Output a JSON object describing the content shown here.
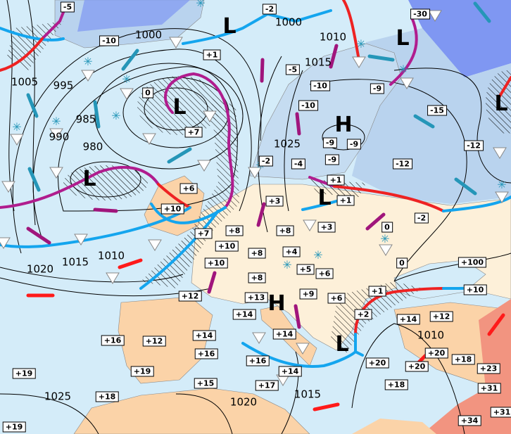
{
  "map": {
    "colors": {
      "sea": "#d4ecf9",
      "land": "#fdf0d9",
      "warm_land": "#fbd3a8",
      "hot_land": "#f29480",
      "cold_land": "#b9d3ee",
      "very_cold": "#7f97f2",
      "cold_front": "#14a5ee",
      "warm_front": "#ee2222",
      "occluded_front": "#b01c8e",
      "cold_arrow": "#2596b8",
      "warm_arrow": "#ff1a1a",
      "moist_arrow": "#a0157c"
    },
    "temperature_labels": [
      "-5",
      "-10",
      "+1",
      "0",
      "+7",
      "+6",
      "+10",
      "-2",
      "-30",
      "-5",
      "-10",
      "-10",
      "-9",
      "-15",
      "-9",
      "-9",
      "-9",
      "-2",
      "-4",
      "-12",
      "-12",
      "+1",
      "+1",
      "+3",
      "+3",
      "0",
      "-2",
      "+8",
      "+8",
      "+7",
      "+10",
      "+8",
      "+4",
      "+10",
      "0",
      "+100",
      "+8",
      "+5",
      "+6",
      "+9",
      "+6",
      "+1",
      "+10",
      "+12",
      "+13",
      "+14",
      "+2",
      "+14",
      "+12",
      "+14",
      "+14",
      "+16",
      "+12",
      "+16",
      "+16",
      "+20",
      "+20",
      "+20",
      "+18",
      "+23",
      "+19",
      "+19",
      "+14",
      "+15",
      "+17",
      "+18",
      "+31",
      "+18",
      "+31",
      "+34",
      "+19"
    ],
    "isobar_labels": [
      "1000",
      "1005",
      "995",
      "985",
      "990",
      "980",
      "1010",
      "1015",
      "1020",
      "1000",
      "1010",
      "1015",
      "1025",
      "1010",
      "1015",
      "1025",
      "1020"
    ],
    "pressure_centers": [
      "L",
      "L",
      "L",
      "L",
      "L",
      "H",
      "L",
      "H",
      "L"
    ],
    "icons": [
      "snow-icon",
      "shower-triangle-icon",
      "rain-drop-icon",
      "cold-air-arrow-icon",
      "warm-air-arrow-icon",
      "moist-air-arrow-icon",
      "cold-front-icon",
      "warm-front-icon",
      "occluded-front-icon",
      "precipitation-hatch-icon"
    ]
  }
}
